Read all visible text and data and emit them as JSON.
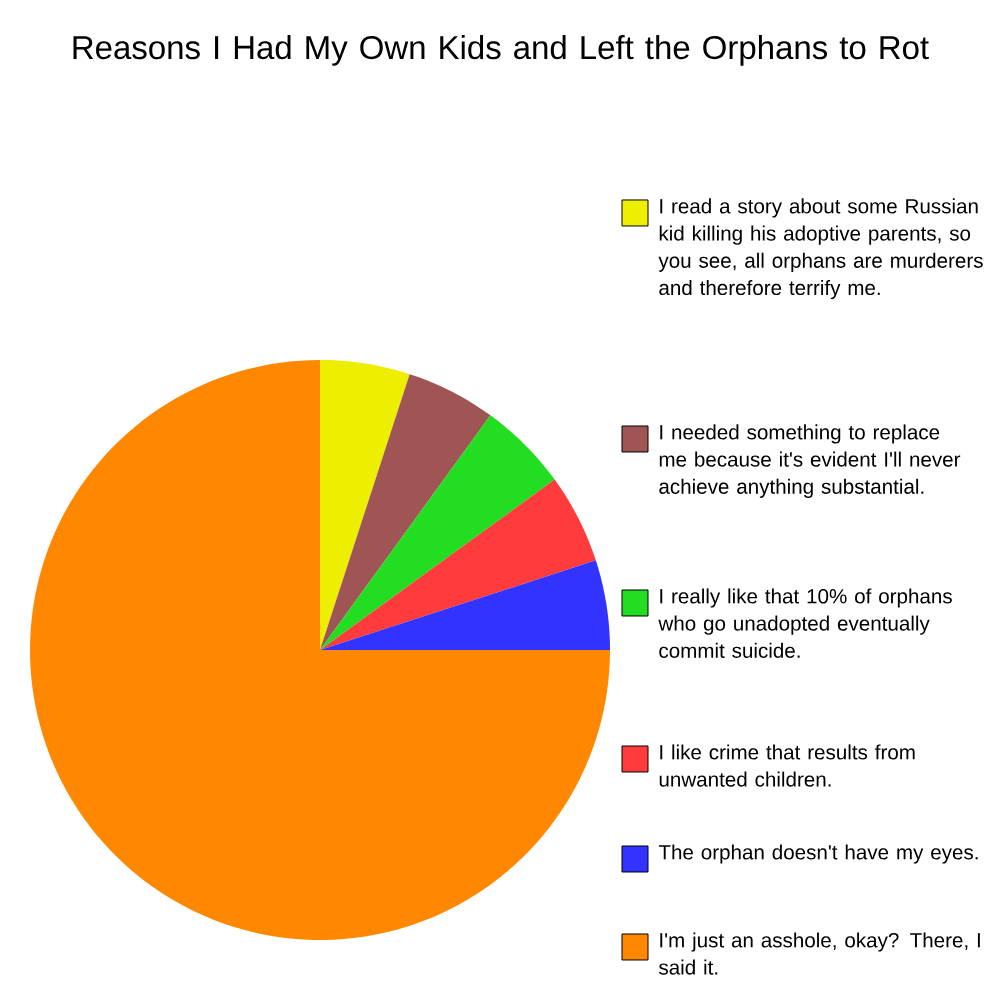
{
  "chart_data": {
    "type": "pie",
    "title": "Reasons I Had My Own Kids and Left the Orphans to Rot",
    "categories": [
      "I read a story about some Russian kid killing his adoptive parents, so you see, all orphans are murderers and therefore terrify me.",
      "I needed something to replace me because it's evident I'll never achieve anything substantial.",
      "I really like that 10% of orphans who go unadopted eventually commit suicide.",
      "I like crime that results from unwanted children.",
      "The orphan doesn't have my eyes.",
      "I'm just an asshole, okay? There, I said it."
    ],
    "values": [
      5,
      5,
      5,
      5,
      5,
      75
    ],
    "colors": [
      "#eeee00",
      "#a05555",
      "#22dd22",
      "#ff3b3b",
      "#3333ff",
      "#ff8800"
    ],
    "legend": "right"
  }
}
